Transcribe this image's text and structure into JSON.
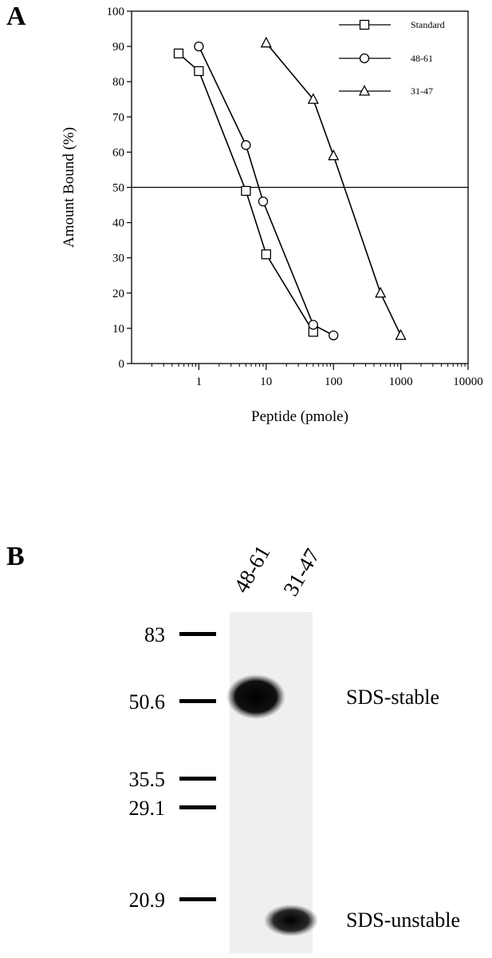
{
  "panel_a": {
    "letter": "A",
    "chart_data": {
      "type": "line",
      "xlabel": "Peptide (pmole)",
      "ylabel": "Amount Bound (%)",
      "x_scale": "log",
      "xlim": [
        0.1,
        10000
      ],
      "ylim": [
        0,
        100
      ],
      "x_ticks": [
        "1",
        "10",
        "100",
        "1000",
        "10000"
      ],
      "x_tick_values": [
        1,
        10,
        100,
        1000,
        10000
      ],
      "y_ticks": [
        "0",
        "10",
        "20",
        "30",
        "40",
        "50",
        "60",
        "70",
        "80",
        "90",
        "100"
      ],
      "y_tick_values": [
        0,
        10,
        20,
        30,
        40,
        50,
        60,
        70,
        80,
        90,
        100
      ],
      "reference_line_y": 50,
      "legend_position": "top-right",
      "series": [
        {
          "name": "Standard",
          "marker": "square",
          "x": [
            0.5,
            1,
            5,
            10,
            50
          ],
          "y": [
            88,
            83,
            49,
            31,
            9
          ]
        },
        {
          "name": "48-61",
          "marker": "circle",
          "x": [
            1,
            5,
            9,
            50,
            100
          ],
          "y": [
            90,
            62,
            46,
            11,
            8
          ]
        },
        {
          "name": "31-47",
          "marker": "triangle",
          "x": [
            10,
            50,
            100,
            500,
            1000
          ],
          "y": [
            91,
            75,
            59,
            20,
            8
          ]
        }
      ]
    }
  },
  "panel_b": {
    "letter": "B",
    "lanes": [
      "48-61",
      "31-47"
    ],
    "markers": [
      "83",
      "50.6",
      "35.5",
      "29.1",
      "20.9"
    ],
    "marker_values": [
      83,
      50.6,
      35.5,
      29.1,
      20.9
    ],
    "bands": [
      {
        "label": "SDS-stable",
        "lane": "48-61"
      },
      {
        "label": "SDS-unstable",
        "lane": "31-47"
      }
    ]
  }
}
